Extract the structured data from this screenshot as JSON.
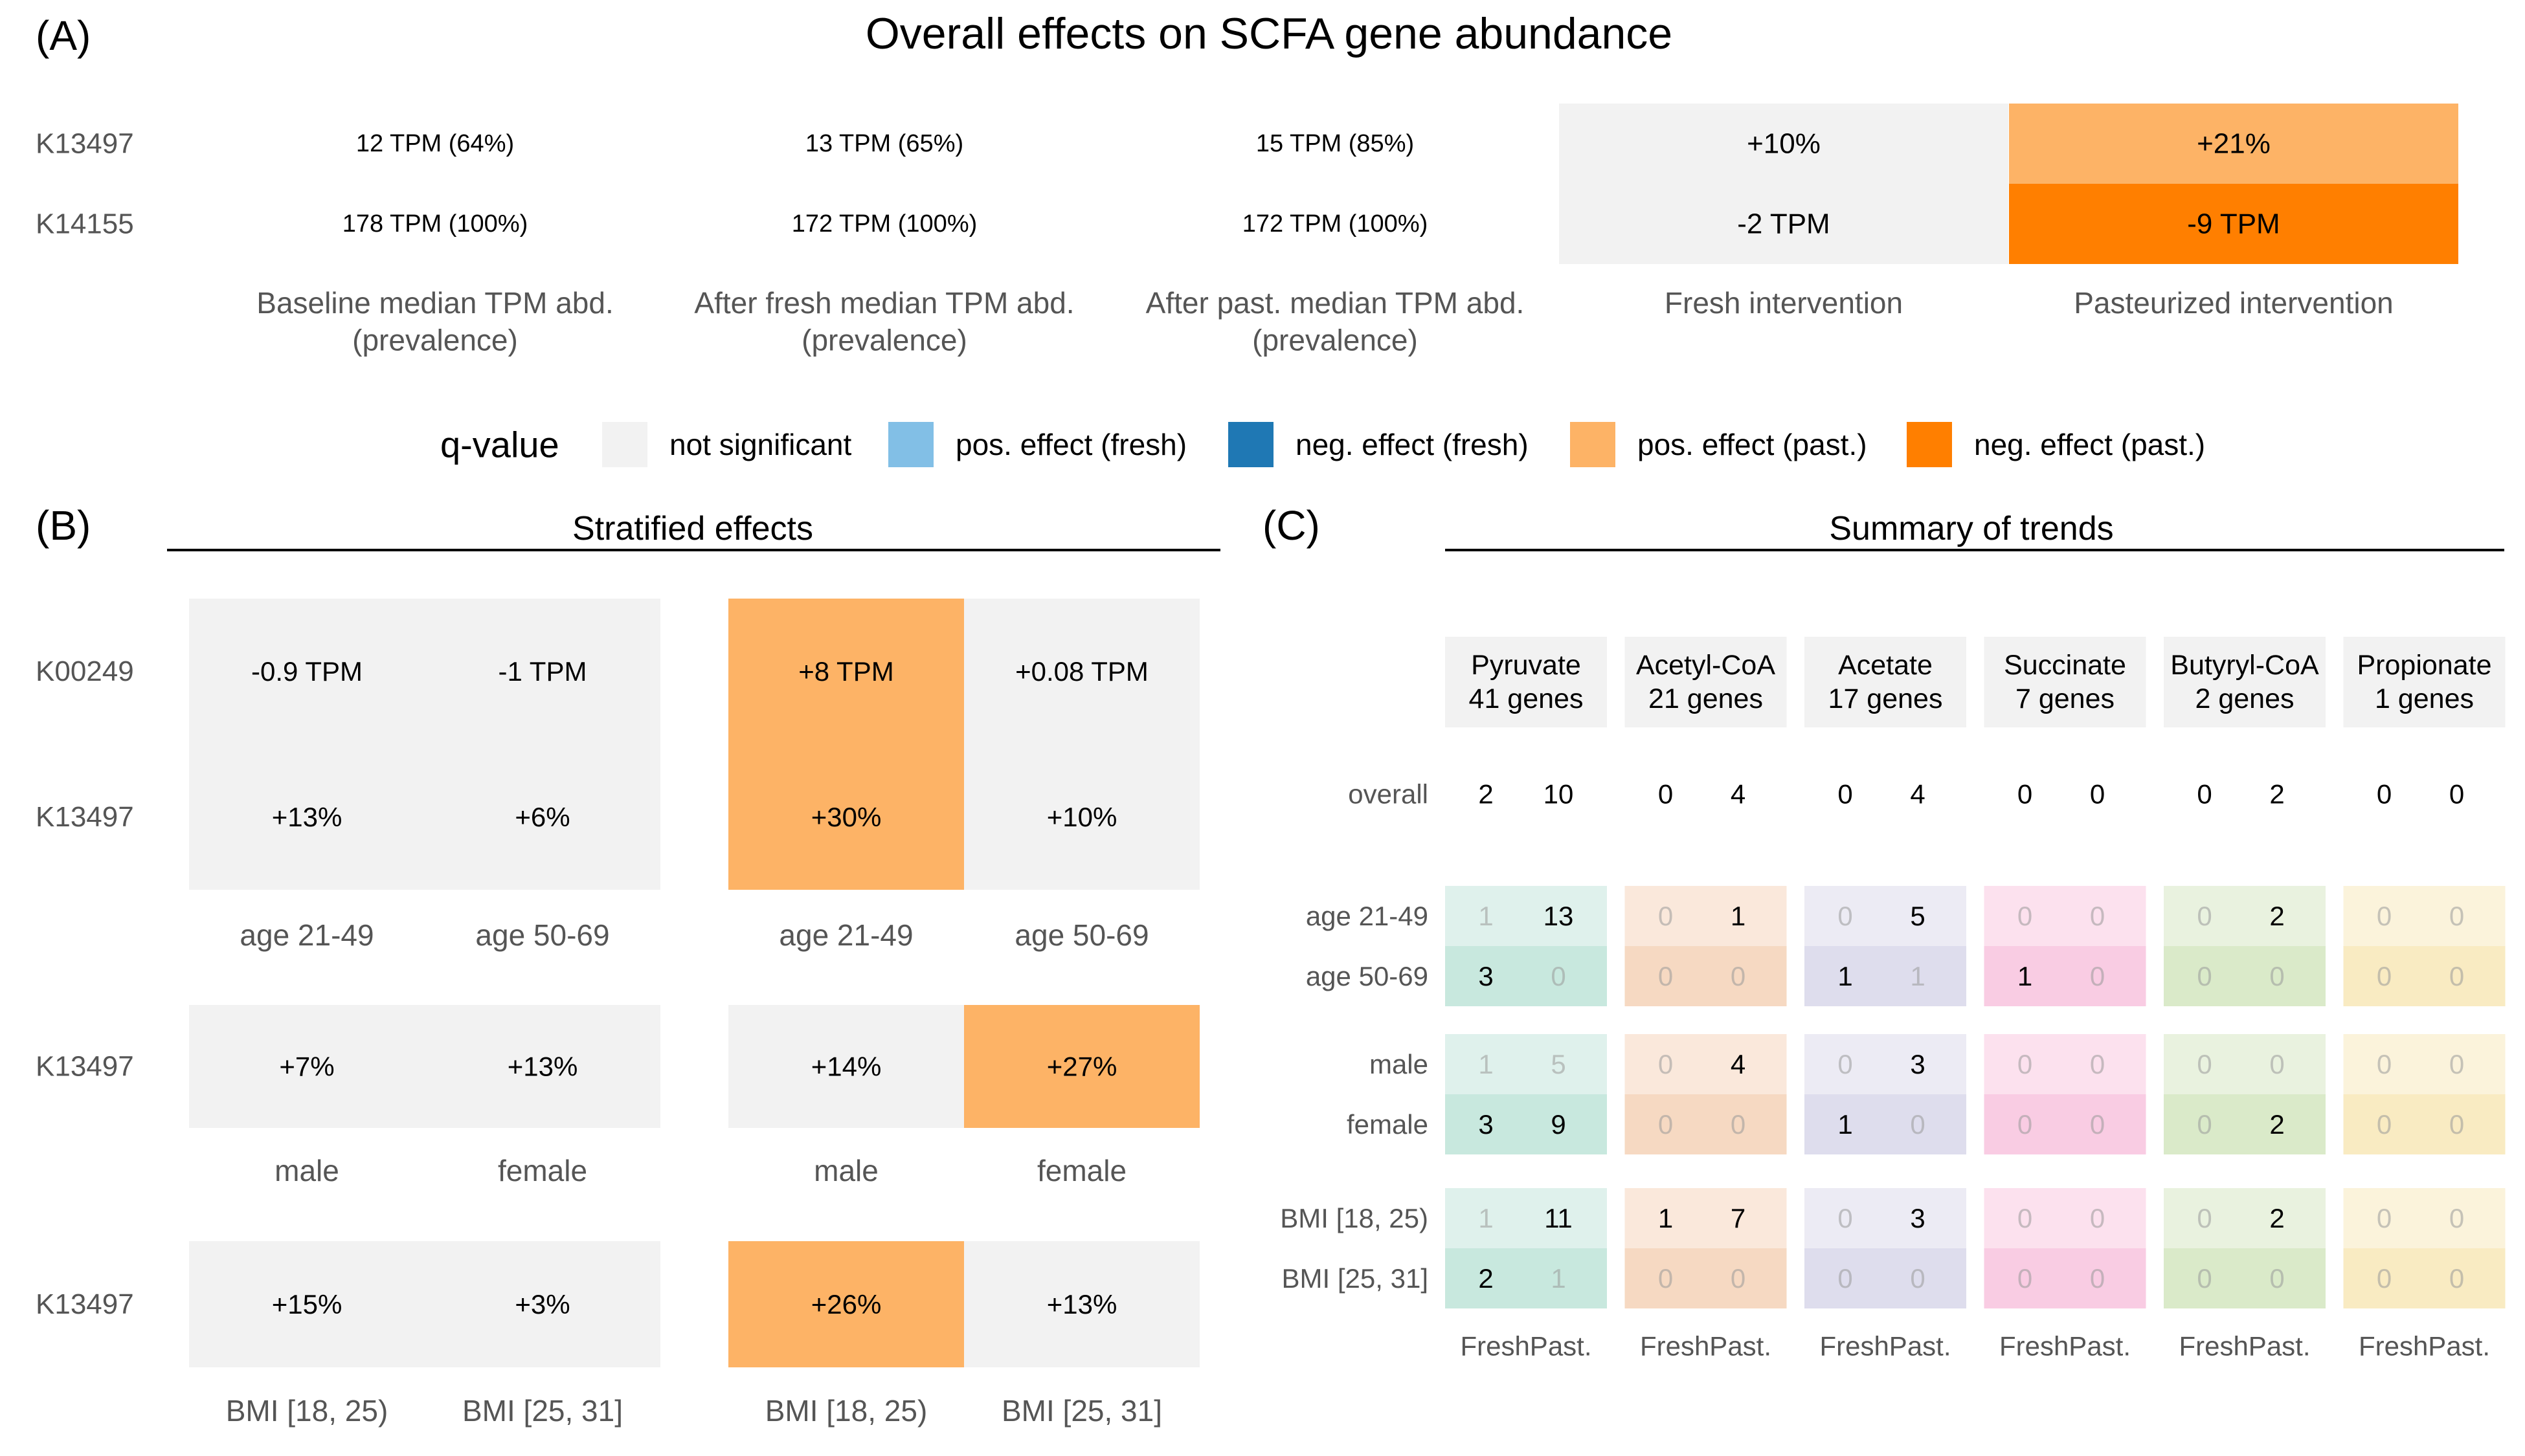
{
  "colors": {
    "not_significant": "#f2f2f2",
    "pos_fresh": "#82bfe6",
    "neg_fresh": "#1f78b4",
    "pos_past": "#fdb366",
    "neg_past": "#ff7f00",
    "label_gray": "#555555",
    "rule": "#000000"
  },
  "chart_data": [
    {
      "id": "A",
      "panel_label": "(A)",
      "type": "table",
      "title": "Overall effects on SCFA gene abundance",
      "rows": [
        "K13497",
        "K14155"
      ],
      "columns": [
        "Baseline median TPM abd.\n(prevalence)",
        "After fresh median TPM abd.\n(prevalence)",
        "After past. median TPM abd.\n(prevalence)",
        "Fresh intervention",
        "Pasteurized intervention"
      ],
      "cells": [
        [
          {
            "text": "12 TPM (64%)",
            "effect": "none"
          },
          {
            "text": "13 TPM (65%)",
            "effect": "none"
          },
          {
            "text": "15 TPM (85%)",
            "effect": "none"
          },
          {
            "text": "+10%",
            "effect": "not significant"
          },
          {
            "text": "+21%",
            "effect": "pos. effect (past.)"
          }
        ],
        [
          {
            "text": "178 TPM (100%)",
            "effect": "none"
          },
          {
            "text": "172 TPM (100%)",
            "effect": "none"
          },
          {
            "text": "172 TPM (100%)",
            "effect": "none"
          },
          {
            "text": "-2 TPM",
            "effect": "not significant"
          },
          {
            "text": "-9 TPM",
            "effect": "neg. effect (past.)"
          }
        ]
      ]
    },
    {
      "id": "legend",
      "type": "legend",
      "title": "q-value",
      "entries": [
        {
          "label": "not significant",
          "color": "#f2f2f2"
        },
        {
          "label": "pos. effect (fresh)",
          "color": "#82bfe6"
        },
        {
          "label": "neg. effect (fresh)",
          "color": "#1f78b4"
        },
        {
          "label": "pos. effect (past.)",
          "color": "#fdb366"
        },
        {
          "label": "neg. effect (past.)",
          "color": "#ff7f00"
        }
      ]
    },
    {
      "id": "B",
      "panel_label": "(B)",
      "type": "heatmap",
      "title": "Stratified effects",
      "groups": [
        {
          "rows": [
            "K00249",
            "K13497"
          ],
          "columns": [
            "age 21-49",
            "age 50-69",
            "age 21-49",
            "age 50-69"
          ],
          "cells": [
            [
              {
                "text": "-0.9 TPM",
                "effect": "not significant"
              },
              {
                "text": "-1 TPM",
                "effect": "not significant"
              },
              {
                "text": "+8 TPM",
                "effect": "pos. effect (past.)"
              },
              {
                "text": "+0.08 TPM",
                "effect": "not significant"
              }
            ],
            [
              {
                "text": "+13%",
                "effect": "not significant"
              },
              {
                "text": "+6%",
                "effect": "not significant"
              },
              {
                "text": "+30%",
                "effect": "pos. effect (past.)"
              },
              {
                "text": "+10%",
                "effect": "not significant"
              }
            ]
          ]
        },
        {
          "rows": [
            "K13497"
          ],
          "columns": [
            "male",
            "female",
            "male",
            "female"
          ],
          "cells": [
            [
              {
                "text": "+7%",
                "effect": "not significant"
              },
              {
                "text": "+13%",
                "effect": "not significant"
              },
              {
                "text": "+14%",
                "effect": "not significant"
              },
              {
                "text": "+27%",
                "effect": "pos. effect (past.)"
              }
            ]
          ]
        },
        {
          "rows": [
            "K13497"
          ],
          "columns": [
            "BMI [18, 25)",
            "BMI [25, 31]",
            "BMI [18, 25)",
            "BMI [25, 31]"
          ],
          "cells": [
            [
              {
                "text": "+15%",
                "effect": "not significant"
              },
              {
                "text": "+3%",
                "effect": "not significant"
              },
              {
                "text": "+26%",
                "effect": "pos. effect (past.)"
              },
              {
                "text": "+13%",
                "effect": "not significant"
              }
            ]
          ]
        }
      ]
    },
    {
      "id": "C",
      "panel_label": "(C)",
      "type": "heatmap",
      "title": "Summary of trends",
      "subcolumns": [
        "Fresh",
        "Past."
      ],
      "categories": [
        {
          "name": "Pyruvate",
          "genes": "41 genes",
          "color": "#1b9e77"
        },
        {
          "name": "Acetyl-CoA",
          "genes": "21 genes",
          "color": "#d95f02"
        },
        {
          "name": "Acetate",
          "genes": "17 genes",
          "color": "#7570b3"
        },
        {
          "name": "Succinate",
          "genes": "7 genes",
          "color": "#e7298a"
        },
        {
          "name": "Butyryl-CoA",
          "genes": "2 genes",
          "color": "#66a61e"
        },
        {
          "name": "Propionate",
          "genes": "1 genes",
          "color": "#e6ab02"
        }
      ],
      "overall_label": "overall",
      "overall": [
        [
          2,
          10
        ],
        [
          0,
          4
        ],
        [
          0,
          4
        ],
        [
          0,
          0
        ],
        [
          0,
          2
        ],
        [
          0,
          0
        ]
      ],
      "strata": [
        {
          "rows": [
            "age 21-49",
            "age 50-69"
          ],
          "values": [
            [
              [
                1,
                13
              ],
              [
                0,
                1
              ],
              [
                0,
                5
              ],
              [
                0,
                0
              ],
              [
                0,
                2
              ],
              [
                0,
                0
              ]
            ],
            [
              [
                3,
                0
              ],
              [
                0,
                0
              ],
              [
                1,
                1
              ],
              [
                1,
                0
              ],
              [
                0,
                0
              ],
              [
                0,
                0
              ]
            ]
          ]
        },
        {
          "rows": [
            "male",
            "female"
          ],
          "values": [
            [
              [
                1,
                5
              ],
              [
                0,
                4
              ],
              [
                0,
                3
              ],
              [
                0,
                0
              ],
              [
                0,
                0
              ],
              [
                0,
                0
              ]
            ],
            [
              [
                3,
                9
              ],
              [
                0,
                0
              ],
              [
                1,
                0
              ],
              [
                0,
                0
              ],
              [
                0,
                2
              ],
              [
                0,
                0
              ]
            ]
          ]
        },
        {
          "rows": [
            "BMI [18, 25)",
            "BMI [25, 31]"
          ],
          "values": [
            [
              [
                1,
                11
              ],
              [
                1,
                7
              ],
              [
                0,
                3
              ],
              [
                0,
                0
              ],
              [
                0,
                2
              ],
              [
                0,
                0
              ]
            ],
            [
              [
                2,
                1
              ],
              [
                0,
                0
              ],
              [
                0,
                0
              ],
              [
                0,
                0
              ],
              [
                0,
                0
              ],
              [
                0,
                0
              ]
            ]
          ]
        }
      ],
      "emphasized": [
        [
          [
            false,
            true
          ],
          [
            false,
            true
          ],
          [
            false,
            true
          ],
          [
            false,
            false
          ],
          [
            false,
            true
          ],
          [
            false,
            false
          ]
        ],
        [
          [
            true,
            false
          ],
          [
            false,
            false
          ],
          [
            true,
            false
          ],
          [
            true,
            false
          ],
          [
            false,
            false
          ],
          [
            false,
            false
          ]
        ],
        [
          [
            false,
            false
          ],
          [
            false,
            true
          ],
          [
            false,
            true
          ],
          [
            false,
            false
          ],
          [
            false,
            false
          ],
          [
            false,
            false
          ]
        ],
        [
          [
            true,
            true
          ],
          [
            false,
            false
          ],
          [
            true,
            false
          ],
          [
            false,
            false
          ],
          [
            false,
            true
          ],
          [
            false,
            false
          ]
        ],
        [
          [
            false,
            true
          ],
          [
            true,
            true
          ],
          [
            false,
            true
          ],
          [
            false,
            false
          ],
          [
            false,
            true
          ],
          [
            false,
            false
          ]
        ],
        [
          [
            true,
            false
          ],
          [
            false,
            false
          ],
          [
            false,
            false
          ],
          [
            false,
            false
          ],
          [
            false,
            false
          ],
          [
            false,
            false
          ]
        ]
      ]
    }
  ]
}
